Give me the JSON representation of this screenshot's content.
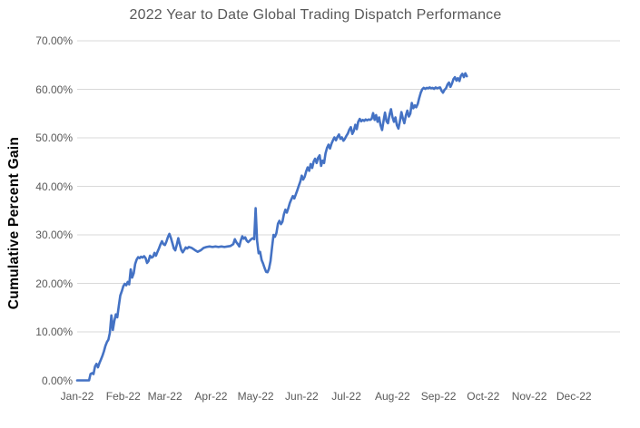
{
  "chart": {
    "background": "#FFFFFF",
    "line_color": "#4472C4",
    "grid_color": "#D9D9D9",
    "title_color": "#595959",
    "tick_color": "#595959",
    "axis_title_color": "#000000"
  },
  "chart_data": {
    "type": "line",
    "title": "2022 Year to Date Global Trading Dispatch Performance",
    "xlabel": "",
    "ylabel": "Cumulative Percent Gain",
    "legend": "none",
    "grid": "horizontal",
    "ylim": [
      0,
      70
    ],
    "ytick_step": 10,
    "yticks": [
      "0.00%",
      "10.00%",
      "20.00%",
      "30.00%",
      "40.00%",
      "50.00%",
      "60.00%",
      "70.00%"
    ],
    "categories": [
      "Jan-22",
      "Feb-22",
      "Mar-22",
      "Apr-22",
      "May-22",
      "Jun-22",
      "Jul-22",
      "Aug-22",
      "Sep-22",
      "Oct-22",
      "Nov-22",
      "Dec-22"
    ],
    "month_start_days": [
      0,
      31,
      59,
      90,
      120,
      151,
      181,
      212,
      243,
      273,
      304,
      334
    ],
    "xlim_days": [
      0,
      365
    ],
    "series": [
      {
        "name": "Cumulative Percent Gain",
        "x_unit": "day_of_year_2022",
        "y_unit": "percent",
        "points": [
          [
            0,
            0
          ],
          [
            3,
            0
          ],
          [
            6,
            0
          ],
          [
            8,
            0
          ],
          [
            9,
            1.3
          ],
          [
            10,
            1.5
          ],
          [
            11,
            1.3
          ],
          [
            12,
            2.9
          ],
          [
            13,
            3.4
          ],
          [
            14,
            2.7
          ],
          [
            15,
            3.6
          ],
          [
            16,
            4.3
          ],
          [
            17,
            5.1
          ],
          [
            18,
            6
          ],
          [
            19,
            7.1
          ],
          [
            20,
            7.9
          ],
          [
            21,
            8.4
          ],
          [
            22,
            9.8
          ],
          [
            23,
            13.4
          ],
          [
            24,
            10.4
          ],
          [
            25,
            12.3
          ],
          [
            26,
            13.6
          ],
          [
            27,
            13
          ],
          [
            28,
            15.4
          ],
          [
            29,
            17.5
          ],
          [
            30,
            18.4
          ],
          [
            31,
            19.4
          ],
          [
            32,
            19.9
          ],
          [
            33,
            19.6
          ],
          [
            34,
            20.3
          ],
          [
            35,
            19.8
          ],
          [
            36,
            22.9
          ],
          [
            37,
            21.2
          ],
          [
            38,
            22.1
          ],
          [
            39,
            24
          ],
          [
            40,
            24.9
          ],
          [
            41,
            25.4
          ],
          [
            42,
            25.2
          ],
          [
            43,
            25.5
          ],
          [
            44,
            25.3
          ],
          [
            45,
            25.6
          ],
          [
            46,
            25.2
          ],
          [
            47,
            24.2
          ],
          [
            48,
            24.6
          ],
          [
            49,
            25.7
          ],
          [
            50,
            25.3
          ],
          [
            51,
            25.5
          ],
          [
            52,
            26.3
          ],
          [
            53,
            25.7
          ],
          [
            54,
            26.5
          ],
          [
            55,
            27.2
          ],
          [
            56,
            28
          ],
          [
            57,
            28.7
          ],
          [
            58,
            28.1
          ],
          [
            59,
            27.9
          ],
          [
            60,
            28.6
          ],
          [
            61,
            29.5
          ],
          [
            62,
            30.2
          ],
          [
            63,
            29.4
          ],
          [
            64,
            28.3
          ],
          [
            65,
            27.2
          ],
          [
            66,
            26.8
          ],
          [
            67,
            28
          ],
          [
            68,
            29.3
          ],
          [
            69,
            28.1
          ],
          [
            70,
            26.9
          ],
          [
            71,
            26.4
          ],
          [
            72,
            26.9
          ],
          [
            73,
            27.4
          ],
          [
            74,
            27.2
          ],
          [
            75,
            27.5
          ],
          [
            77,
            27.3
          ],
          [
            79,
            26.9
          ],
          [
            81,
            26.5
          ],
          [
            83,
            26.8
          ],
          [
            85,
            27.3
          ],
          [
            87,
            27.5
          ],
          [
            89,
            27.6
          ],
          [
            91,
            27.5
          ],
          [
            93,
            27.6
          ],
          [
            95,
            27.5
          ],
          [
            97,
            27.6
          ],
          [
            99,
            27.5
          ],
          [
            101,
            27.6
          ],
          [
            103,
            27.7
          ],
          [
            105,
            28.1
          ],
          [
            106,
            29.1
          ],
          [
            107,
            28.5
          ],
          [
            108,
            28.1
          ],
          [
            109,
            27.6
          ],
          [
            110,
            28.8
          ],
          [
            111,
            29.7
          ],
          [
            112,
            29.2
          ],
          [
            113,
            29.5
          ],
          [
            114,
            28.8
          ],
          [
            115,
            28.5
          ],
          [
            116,
            28.8
          ],
          [
            117,
            29.1
          ],
          [
            118,
            29.3
          ],
          [
            119,
            29.1
          ],
          [
            120,
            35.5
          ],
          [
            121,
            28.8
          ],
          [
            122,
            26.2
          ],
          [
            123,
            26.5
          ],
          [
            124,
            24.8
          ],
          [
            125,
            24.1
          ],
          [
            126,
            23.2
          ],
          [
            127,
            22.4
          ],
          [
            128,
            22.3
          ],
          [
            129,
            23
          ],
          [
            130,
            24.6
          ],
          [
            131,
            27.3
          ],
          [
            132,
            30
          ],
          [
            133,
            29.6
          ],
          [
            134,
            30.4
          ],
          [
            135,
            32.3
          ],
          [
            136,
            32.9
          ],
          [
            137,
            32.2
          ],
          [
            138,
            32.7
          ],
          [
            139,
            34.2
          ],
          [
            140,
            35.2
          ],
          [
            141,
            34.6
          ],
          [
            142,
            35.5
          ],
          [
            143,
            36.6
          ],
          [
            144,
            37.3
          ],
          [
            145,
            38
          ],
          [
            146,
            37.5
          ],
          [
            147,
            38.3
          ],
          [
            148,
            39.2
          ],
          [
            149,
            40.1
          ],
          [
            150,
            41
          ],
          [
            151,
            42.2
          ],
          [
            152,
            41.4
          ],
          [
            153,
            42
          ],
          [
            154,
            43.1
          ],
          [
            155,
            43.9
          ],
          [
            156,
            43.2
          ],
          [
            157,
            44.6
          ],
          [
            158,
            43.8
          ],
          [
            159,
            45.1
          ],
          [
            160,
            45.7
          ],
          [
            161,
            44.8
          ],
          [
            162,
            45.9
          ],
          [
            163,
            46.4
          ],
          [
            164,
            44.2
          ],
          [
            165,
            45.3
          ],
          [
            166,
            44.8
          ],
          [
            167,
            46.8
          ],
          [
            168,
            47.9
          ],
          [
            169,
            48.6
          ],
          [
            170,
            47.8
          ],
          [
            171,
            48.8
          ],
          [
            172,
            49.5
          ],
          [
            173,
            50.1
          ],
          [
            174,
            49.5
          ],
          [
            175,
            50.2
          ],
          [
            176,
            50.7
          ],
          [
            177,
            49.8
          ],
          [
            178,
            50.1
          ],
          [
            179,
            49.4
          ],
          [
            180,
            49.8
          ],
          [
            181,
            50.4
          ],
          [
            182,
            50.9
          ],
          [
            183,
            51.7
          ],
          [
            184,
            52.2
          ],
          [
            185,
            50.8
          ],
          [
            186,
            51.4
          ],
          [
            187,
            52.7
          ],
          [
            188,
            51.8
          ],
          [
            189,
            53.3
          ],
          [
            190,
            53.9
          ],
          [
            191,
            53.4
          ],
          [
            192,
            53.7
          ],
          [
            193,
            53.5
          ],
          [
            194,
            53.8
          ],
          [
            195,
            53.6
          ],
          [
            196,
            53.8
          ],
          [
            197,
            53.7
          ],
          [
            198,
            53.9
          ],
          [
            199,
            55.1
          ],
          [
            200,
            53.7
          ],
          [
            201,
            54.7
          ],
          [
            202,
            53.3
          ],
          [
            203,
            54.2
          ],
          [
            204,
            52.6
          ],
          [
            205,
            51.6
          ],
          [
            206,
            53.5
          ],
          [
            207,
            55.2
          ],
          [
            208,
            53.4
          ],
          [
            209,
            53
          ],
          [
            210,
            54.8
          ],
          [
            211,
            55.9
          ],
          [
            212,
            54.3
          ],
          [
            213,
            53.3
          ],
          [
            214,
            54.2
          ],
          [
            215,
            52.6
          ],
          [
            216,
            51.9
          ],
          [
            217,
            53.4
          ],
          [
            218,
            55.3
          ],
          [
            219,
            54
          ],
          [
            220,
            53
          ],
          [
            221,
            54.6
          ],
          [
            222,
            55.6
          ],
          [
            223,
            54.4
          ],
          [
            224,
            55
          ],
          [
            225,
            57.2
          ],
          [
            226,
            56.1
          ],
          [
            227,
            56.7
          ],
          [
            228,
            56.3
          ],
          [
            229,
            57
          ],
          [
            230,
            58.2
          ],
          [
            231,
            59.3
          ],
          [
            232,
            60
          ],
          [
            233,
            60.3
          ],
          [
            234,
            60.1
          ],
          [
            235,
            60.3
          ],
          [
            236,
            60.2
          ],
          [
            237,
            60.4
          ],
          [
            238,
            60.2
          ],
          [
            239,
            60.3
          ],
          [
            240,
            60.1
          ],
          [
            241,
            60.4
          ],
          [
            242,
            60.2
          ],
          [
            243,
            60.3
          ],
          [
            244,
            60.4
          ],
          [
            245,
            59.7
          ],
          [
            246,
            59.3
          ],
          [
            247,
            59.9
          ],
          [
            248,
            60.2
          ],
          [
            249,
            61
          ],
          [
            250,
            61.4
          ],
          [
            251,
            60.5
          ],
          [
            252,
            61.2
          ],
          [
            253,
            62.1
          ],
          [
            254,
            62.5
          ],
          [
            255,
            61.8
          ],
          [
            256,
            62.3
          ],
          [
            257,
            61.7
          ],
          [
            258,
            62.8
          ],
          [
            259,
            63.2
          ],
          [
            260,
            62.5
          ],
          [
            261,
            63.3
          ],
          [
            262,
            62.7
          ]
        ]
      }
    ]
  }
}
